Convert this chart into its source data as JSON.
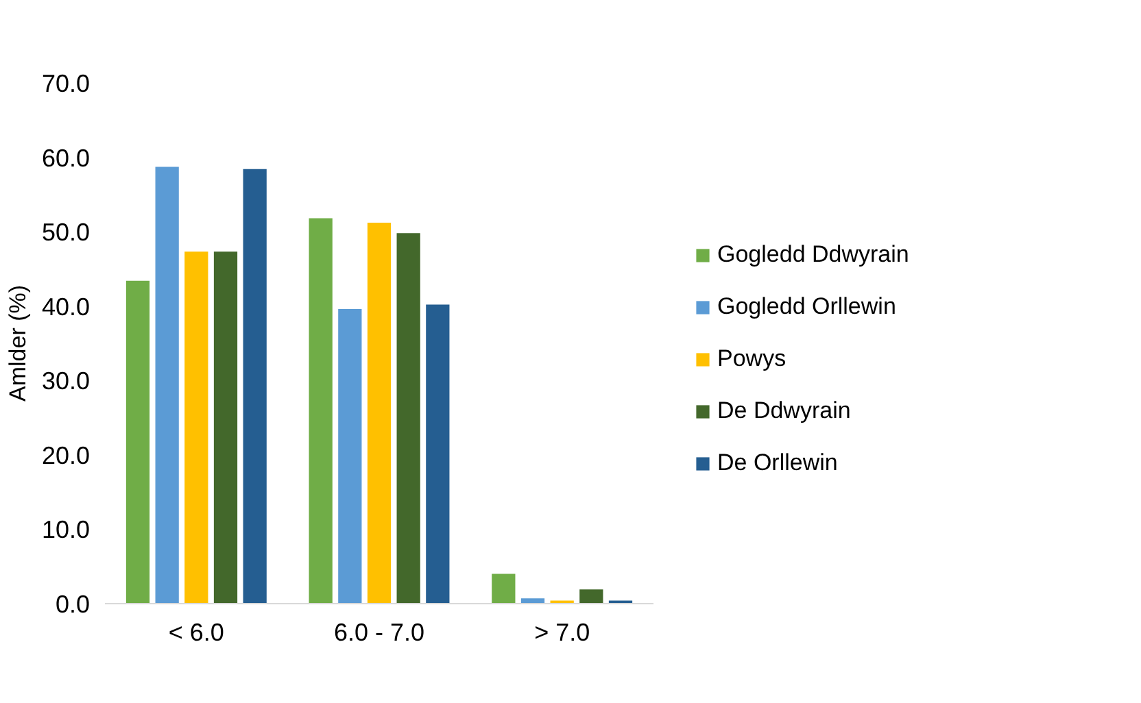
{
  "chart_data": {
    "type": "bar",
    "ylabel": "Amlder (%)",
    "categories": [
      "< 6.0",
      "6.0 - 7.0",
      "> 7.0"
    ],
    "ylim": [
      0,
      70
    ],
    "yticks": [
      {
        "value": 0,
        "label": "0.0"
      },
      {
        "value": 10,
        "label": "10.0"
      },
      {
        "value": 20,
        "label": "20.0"
      },
      {
        "value": 30,
        "label": "30.0"
      },
      {
        "value": 40,
        "label": "40.0"
      },
      {
        "value": 50,
        "label": "50.0"
      },
      {
        "value": 60,
        "label": "60.0"
      },
      {
        "value": 70,
        "label": "70.0"
      }
    ],
    "grid": false,
    "legend": "right",
    "series": [
      {
        "name": "Gogledd Ddwyrain",
        "color": "#70ad47",
        "values": [
          43.5,
          51.9,
          4.1
        ]
      },
      {
        "name": "Gogledd Orllewin",
        "color": "#5b9bd5",
        "values": [
          58.8,
          39.7,
          0.8
        ]
      },
      {
        "name": "Powys",
        "color": "#ffc000",
        "values": [
          47.4,
          51.3,
          0.5
        ]
      },
      {
        "name": "De Ddwyrain",
        "color": "#43682b",
        "values": [
          47.4,
          49.9,
          2.0
        ]
      },
      {
        "name": "De Orllewin",
        "color": "#255e91",
        "values": [
          58.5,
          40.3,
          0.5
        ]
      }
    ]
  }
}
